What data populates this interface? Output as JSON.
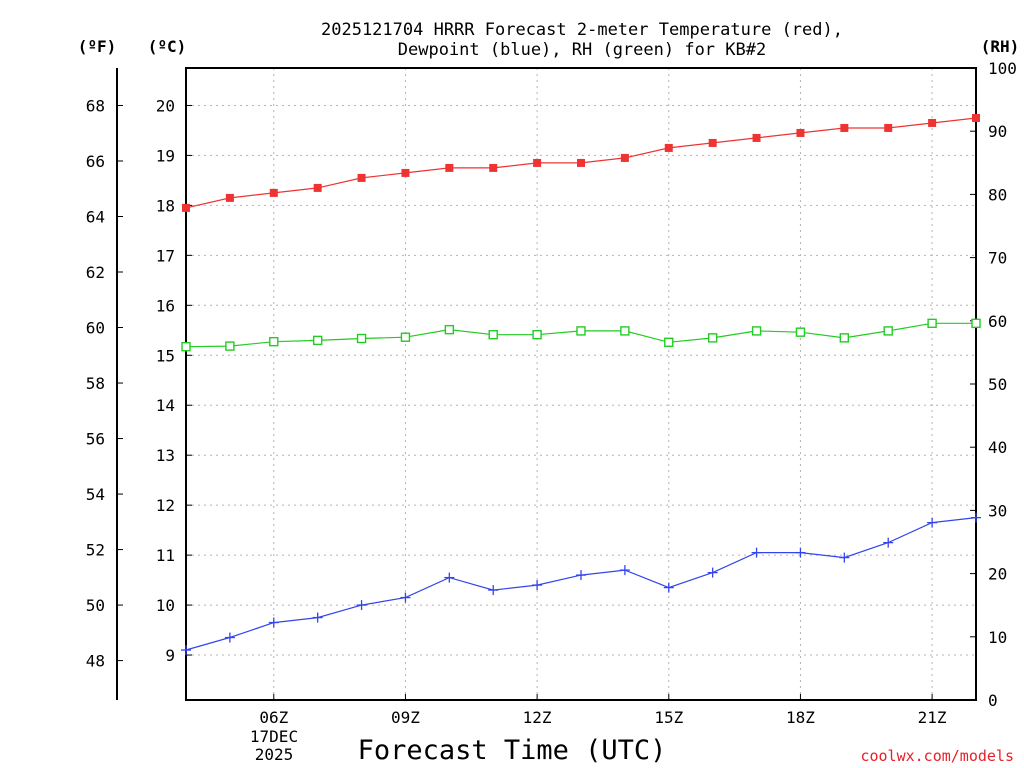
{
  "chart_data": {
    "type": "line",
    "title_line1": "2025121704 HRRR Forecast 2-meter Temperature (red),",
    "title_line2": "Dewpoint (blue), RH (green) for KB#2",
    "unit_f": "(ºF)",
    "unit_c": "(ºC)",
    "unit_rh": "(RH)",
    "xlabel": "Forecast Time (UTC)",
    "watermark": "coolwx.com/models",
    "x_hours": [
      4,
      5,
      6,
      7,
      8,
      9,
      10,
      11,
      12,
      13,
      14,
      15,
      16,
      17,
      18,
      19,
      20,
      21,
      22
    ],
    "xlim": [
      4,
      22
    ],
    "x_ticks": [
      {
        "hour": 6,
        "label": "06Z"
      },
      {
        "hour": 9,
        "label": "09Z"
      },
      {
        "hour": 12,
        "label": "12Z"
      },
      {
        "hour": 15,
        "label": "15Z"
      },
      {
        "hour": 18,
        "label": "18Z"
      },
      {
        "hour": 21,
        "label": "21Z"
      }
    ],
    "date_label_line1": "17DEC",
    "date_label_line2": "2025",
    "ylim_c": [
      8.1,
      20.75
    ],
    "y_ticks_c": [
      9,
      10,
      11,
      12,
      13,
      14,
      15,
      16,
      17,
      18,
      19,
      20
    ],
    "y_ticks_f": [
      48,
      50,
      52,
      54,
      56,
      58,
      60,
      62,
      64,
      66,
      68
    ],
    "ylim_rh": [
      0,
      100
    ],
    "y_ticks_rh": [
      0,
      10,
      20,
      30,
      40,
      50,
      60,
      70,
      80,
      90,
      100
    ],
    "series": [
      {
        "name": "Temperature",
        "axis": "C",
        "color": "#ee3333",
        "marker": "filled-square",
        "values": [
          17.95,
          18.15,
          18.25,
          18.35,
          18.55,
          18.65,
          18.75,
          18.75,
          18.85,
          18.85,
          18.95,
          19.15,
          19.25,
          19.35,
          19.45,
          19.55,
          19.55,
          19.65,
          19.75
        ]
      },
      {
        "name": "Dewpoint",
        "axis": "C",
        "color": "#3344ee",
        "marker": "plus",
        "values": [
          9.1,
          9.35,
          9.65,
          9.75,
          10.0,
          10.15,
          10.55,
          10.3,
          10.4,
          10.6,
          10.7,
          10.35,
          10.65,
          11.05,
          11.05,
          10.95,
          11.25,
          11.65,
          11.75
        ]
      },
      {
        "name": "RH",
        "axis": "RH",
        "color": "#22cc22",
        "marker": "open-square",
        "values": [
          55.9,
          56.0,
          56.7,
          56.9,
          57.2,
          57.4,
          58.6,
          57.8,
          57.8,
          58.4,
          58.4,
          56.6,
          57.3,
          58.4,
          58.2,
          57.3,
          58.4,
          59.6,
          59.6
        ]
      }
    ]
  }
}
